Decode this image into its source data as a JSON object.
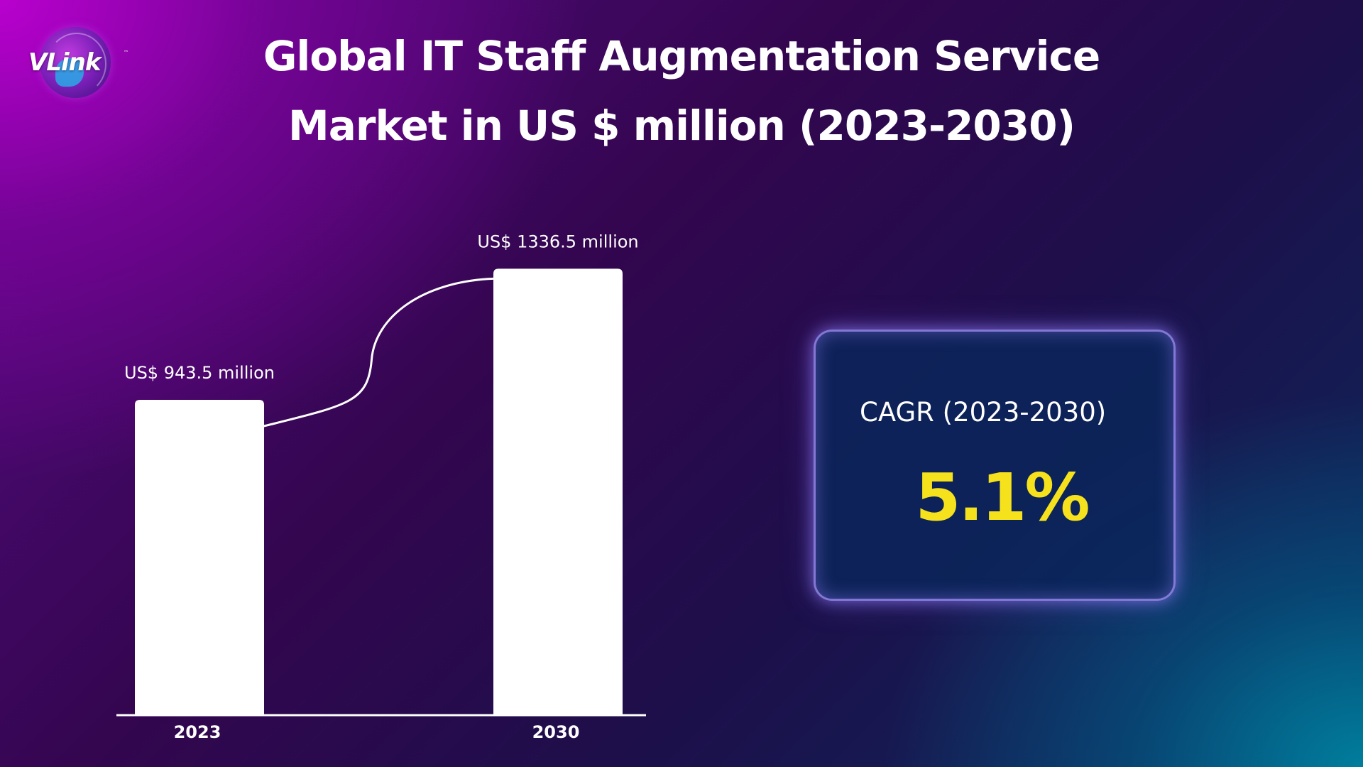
{
  "logo": {
    "text": "VLink",
    "tm": "™"
  },
  "title": {
    "line1": "Global IT Staff Augmentation Service",
    "line2": "Market in US $ million (2023-2030)"
  },
  "chart_data": {
    "type": "bar",
    "title": "Global IT Staff Augmentation Service Market in US $ million (2023-2030)",
    "categories": [
      "2023",
      "2030"
    ],
    "values": [
      943.5,
      1336.5
    ],
    "data_labels": [
      "US$ 943.5 million",
      "US$ 1336.5 million"
    ],
    "xlabel": "",
    "ylabel": "",
    "ylim": [
      0,
      1380
    ],
    "grid": false,
    "bar_color": "#ffffff",
    "connector_curve": true
  },
  "cagr": {
    "label": "CAGR (2023-2030)",
    "value": "5.1%",
    "value_color": "#f5e21d"
  }
}
